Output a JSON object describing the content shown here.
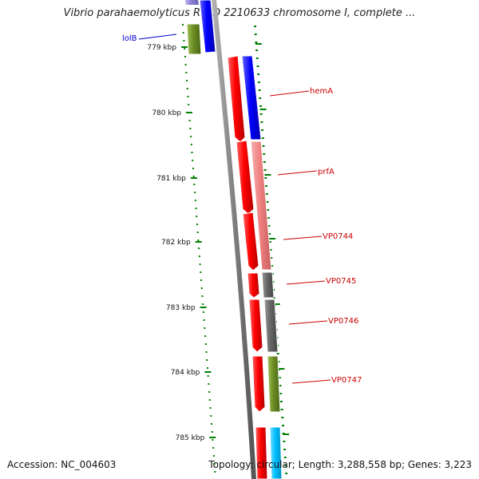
{
  "title": "Vibrio parahaemolyticus RIMD 2210633 chromosome I, complete ...",
  "footer": {
    "accession": "Accession: NC_004603",
    "topology": "Topology: circular; Length: 3,288,558 bp; Genes: 3,223"
  },
  "ruler": {
    "ticks": [
      {
        "label": "779 kbp"
      },
      {
        "label": "780 kbp"
      },
      {
        "label": "781 kbp"
      },
      {
        "label": "782 kbp"
      },
      {
        "label": "783 kbp"
      },
      {
        "label": "784 kbp"
      },
      {
        "label": "785 kbp"
      }
    ]
  },
  "genes": [
    {
      "label": "lolB",
      "color": "#0000cc"
    },
    {
      "label": "hemA",
      "color": "#cc0000"
    },
    {
      "label": "prfA",
      "color": "#cc0000"
    },
    {
      "label": "VP0744",
      "color": "#cc0000"
    },
    {
      "label": "VP0745",
      "color": "#cc0000"
    },
    {
      "label": "VP0746",
      "color": "#cc0000"
    },
    {
      "label": "VP0747",
      "color": "#cc0000"
    }
  ],
  "colors": {
    "backbone": "#808080",
    "ticks": "#008000",
    "cds": "#ff0000",
    "blue": "#0000ff",
    "pink": "#f08080",
    "grey": "#666666",
    "olive": "#6b8e23",
    "cyan": "#00bfff",
    "lavender": "#8a7fd8"
  }
}
